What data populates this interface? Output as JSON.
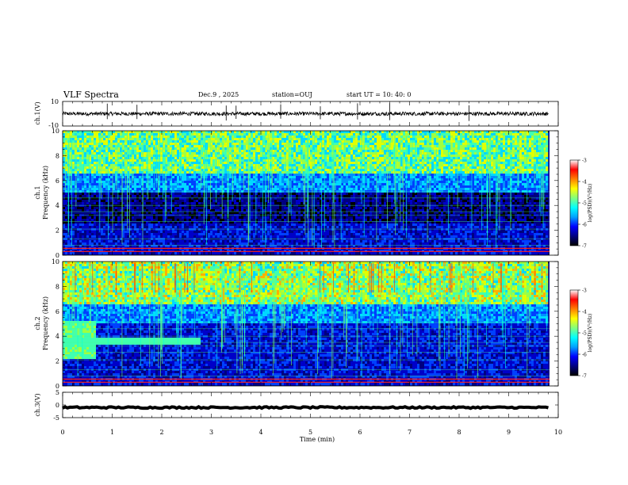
{
  "header": {
    "title": "VLF Spectra",
    "date": "Dec.9 , 2025",
    "station": "station=OUJ",
    "start_ut": "start UT = 10: 40: 0"
  },
  "chart_data": [
    {
      "type": "line",
      "id": "ch1-waveform",
      "ylabel": "ch.1(V)",
      "ylim": [
        -10,
        10
      ],
      "y_ticks": [
        "10",
        "-10"
      ],
      "xlim": [
        0,
        10
      ],
      "baseline": 0.0,
      "noise_amplitude": 1.5
    },
    {
      "type": "heatmap",
      "id": "ch1-spectrogram",
      "ylabel_line1": "ch.1",
      "ylabel_line2": "Frequency (kHz)",
      "ylim": [
        0,
        10
      ],
      "y_ticks": [
        "0",
        "2",
        "4",
        "6",
        "8",
        "10"
      ],
      "xlim": [
        0,
        9.8
      ],
      "colorbar": {
        "label": "log(PSD)(V²/Hz)",
        "range": [
          -7,
          -3
        ],
        "ticks": [
          "-3",
          "-4",
          "-5",
          "-6",
          "-7"
        ],
        "colors": [
          "#000000",
          "#00007f",
          "#0000ff",
          "#00a0ff",
          "#00ffff",
          "#80ff80",
          "#ffff00",
          "#ff8000",
          "#ff0000",
          "#ffffff"
        ]
      }
    },
    {
      "type": "heatmap",
      "id": "ch2-spectrogram",
      "ylabel_line1": "ch.2",
      "ylabel_line2": "Frequency (kHz)",
      "ylim": [
        0,
        10
      ],
      "y_ticks": [
        "0",
        "2",
        "4",
        "6",
        "8",
        "10"
      ],
      "xlim": [
        0,
        9.8
      ],
      "colorbar": {
        "label": "log(PSD)(V²/Hz)",
        "range": [
          -7,
          -3
        ],
        "ticks": [
          "-3",
          "-4",
          "-5",
          "-6",
          "-7"
        ],
        "colors": [
          "#000000",
          "#00007f",
          "#0000ff",
          "#00a0ff",
          "#00ffff",
          "#80ff80",
          "#ffff00",
          "#ff8000",
          "#ff0000",
          "#ffffff"
        ]
      }
    },
    {
      "type": "line",
      "id": "ch3-waveform",
      "ylabel": "ch.3(V)",
      "ylim": [
        -5,
        5
      ],
      "y_ticks": [
        "5",
        "0",
        "-5"
      ],
      "xlim": [
        0,
        10
      ],
      "baseline": -1.0,
      "noise_amplitude": 0.3
    }
  ],
  "x_axis": {
    "label": "Time (min)",
    "ticks": [
      "0",
      "1",
      "2",
      "3",
      "4",
      "5",
      "6",
      "7",
      "8",
      "9",
      "10"
    ],
    "range": [
      0,
      10
    ]
  }
}
